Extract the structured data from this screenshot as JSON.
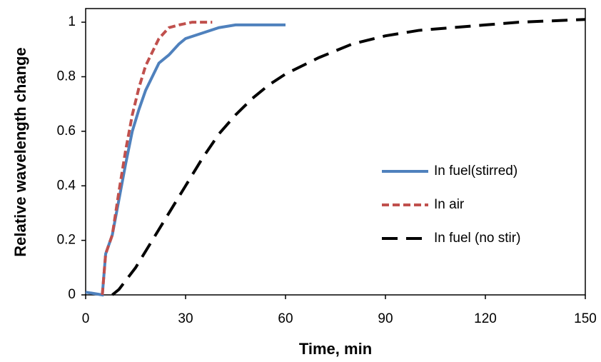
{
  "chart_data": {
    "type": "line",
    "x_label": "Time, min",
    "y_label": "Relative wavelength change",
    "xlim": [
      0,
      150
    ],
    "xticks": [
      0,
      30,
      60,
      90,
      120,
      150
    ],
    "ylim": [
      0,
      1.05
    ],
    "yticks": [
      0,
      0.2,
      0.4,
      0.6,
      0.8,
      1
    ],
    "legend": "right",
    "series": [
      {
        "name": "In fuel(stirred)",
        "color": "#4f81bd",
        "line_style": "solid",
        "x": [
          0,
          5,
          6,
          8,
          10,
          12,
          14,
          16,
          18,
          20,
          22,
          25,
          28,
          30,
          35,
          40,
          45,
          50,
          55,
          60
        ],
        "values": [
          0.01,
          0.0,
          0.15,
          0.22,
          0.35,
          0.48,
          0.6,
          0.68,
          0.75,
          0.8,
          0.85,
          0.88,
          0.92,
          0.94,
          0.96,
          0.98,
          0.99,
          0.99,
          0.99,
          0.99
        ]
      },
      {
        "name": "In air",
        "color": "#c0504d",
        "line_style": "dashed",
        "x": [
          5,
          6,
          8,
          10,
          12,
          14,
          16,
          18,
          20,
          22,
          25,
          28,
          32,
          38
        ],
        "values": [
          0,
          0.15,
          0.22,
          0.38,
          0.53,
          0.66,
          0.76,
          0.84,
          0.89,
          0.94,
          0.98,
          0.99,
          1.0,
          1.0
        ]
      },
      {
        "name": "In fuel (no stir)",
        "color": "#000000",
        "line_style": "long-dashed",
        "x": [
          8,
          10,
          15,
          20,
          25,
          30,
          35,
          40,
          45,
          50,
          55,
          60,
          70,
          80,
          90,
          100,
          110,
          120,
          130,
          150
        ],
        "values": [
          0,
          0.02,
          0.1,
          0.2,
          0.3,
          0.4,
          0.5,
          0.59,
          0.66,
          0.72,
          0.77,
          0.81,
          0.87,
          0.92,
          0.95,
          0.97,
          0.98,
          0.99,
          1.0,
          1.01
        ]
      }
    ]
  }
}
